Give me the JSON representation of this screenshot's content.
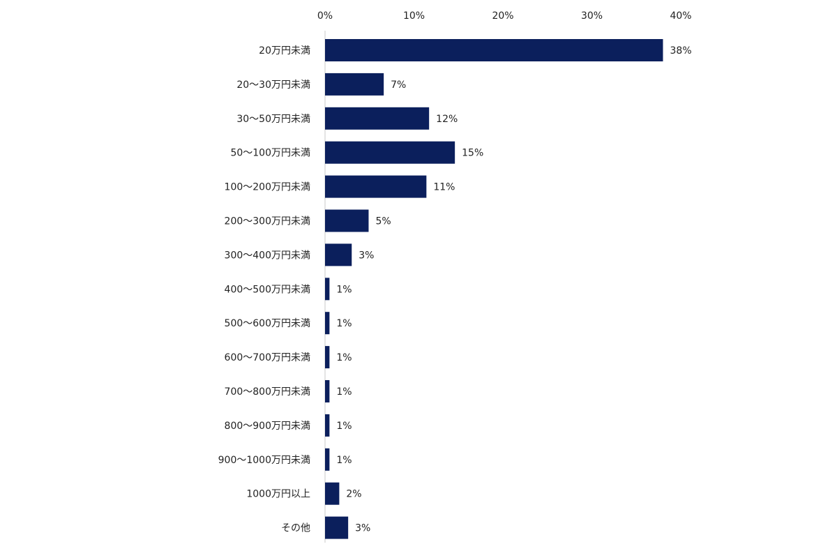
{
  "chart_data": {
    "type": "bar",
    "orientation": "horizontal",
    "categories": [
      "20万円未満",
      "20～30万円未満",
      "30～50万円未満",
      "50～100万円未満",
      "100～200万円未満",
      "200～300万円未満",
      "300～400万円未満",
      "400～500万円未満",
      "500～600万円未満",
      "600～700万円未満",
      "700～800万円未満",
      "800～900万円未満",
      "900～1000万円未満",
      "1000万円以上",
      "その他"
    ],
    "values": [
      38,
      6.6,
      11.7,
      14.6,
      11.4,
      4.9,
      3,
      0.5,
      0.5,
      0.5,
      0.5,
      0.5,
      0.5,
      1.6,
      2.6
    ],
    "data_labels": [
      "38%",
      "7%",
      "12%",
      "15%",
      "11%",
      "5%",
      "3%",
      "1%",
      "1%",
      "1%",
      "1%",
      "1%",
      "1%",
      "2%",
      "3%"
    ],
    "xlim": [
      0,
      40
    ],
    "x_ticks": [
      0,
      10,
      20,
      30,
      40
    ],
    "x_tick_labels": [
      "0%",
      "10%",
      "20%",
      "30%",
      "40%"
    ],
    "x_axis_position": "top",
    "grid": false,
    "legend": "none",
    "title": "",
    "xlabel": "",
    "ylabel": "",
    "colors": {
      "bar": "#0b1f5c",
      "axis": "#c8c8c8",
      "text": "#222222"
    }
  }
}
